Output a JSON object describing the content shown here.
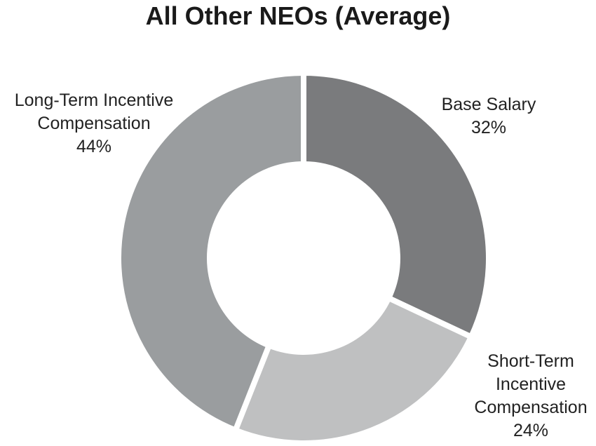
{
  "chart_data": {
    "type": "pie",
    "title": "All Other NEOs (Average)",
    "donut": true,
    "slices": [
      {
        "label": "Base Salary",
        "label_lines": [
          "Base Salary"
        ],
        "value": 32,
        "value_label": "32%",
        "color": "#7a7b7d"
      },
      {
        "label": "Short-Term Incentive Compensation",
        "label_lines": [
          "Short-Term",
          "Incentive",
          "Compensation"
        ],
        "value": 24,
        "value_label": "24%",
        "color": "#bfc0c1"
      },
      {
        "label": "Long-Term Incentive Compensation",
        "label_lines": [
          "Long-Term Incentive",
          "Compensation"
        ],
        "value": 44,
        "value_label": "44%",
        "color": "#9a9d9f"
      }
    ]
  }
}
